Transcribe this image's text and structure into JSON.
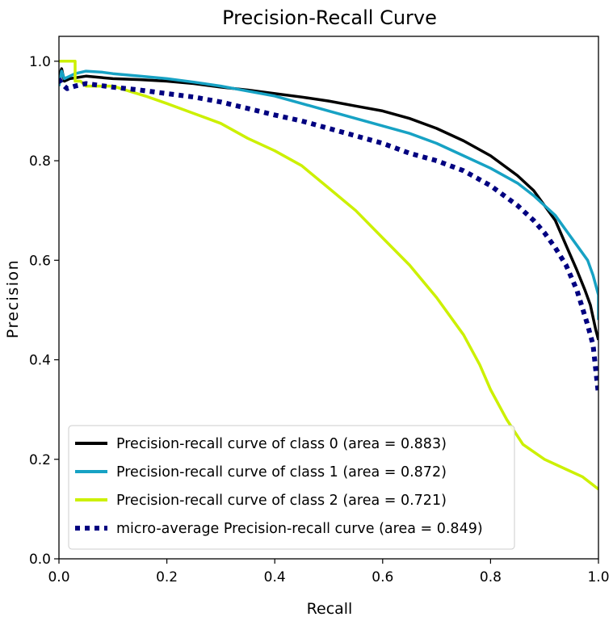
{
  "chart_data": {
    "type": "line",
    "title": "Precision-Recall Curve",
    "xlabel": "Recall",
    "ylabel": "Precision",
    "xlim": [
      0.0,
      1.0
    ],
    "ylim": [
      0.0,
      1.05
    ],
    "xticks": [
      "0.0",
      "0.2",
      "0.4",
      "0.6",
      "0.8",
      "1.0"
    ],
    "xtick_values": [
      0.0,
      0.2,
      0.4,
      0.6,
      0.8,
      1.0
    ],
    "yticks": [
      "0.0",
      "0.2",
      "0.4",
      "0.6",
      "0.8",
      "1.0"
    ],
    "ytick_values": [
      0.0,
      0.2,
      0.4,
      0.6,
      0.8,
      1.0
    ],
    "grid": false,
    "legend_position": "lower-left",
    "series": [
      {
        "name": "Precision-recall curve of class 0 (area = 0.883)",
        "color": "#000000",
        "style": "solid",
        "points": [
          [
            0.0,
            0.97
          ],
          [
            0.005,
            0.985
          ],
          [
            0.01,
            0.96
          ],
          [
            0.02,
            0.965
          ],
          [
            0.05,
            0.97
          ],
          [
            0.1,
            0.965
          ],
          [
            0.15,
            0.963
          ],
          [
            0.2,
            0.96
          ],
          [
            0.25,
            0.955
          ],
          [
            0.3,
            0.948
          ],
          [
            0.35,
            0.942
          ],
          [
            0.4,
            0.935
          ],
          [
            0.45,
            0.928
          ],
          [
            0.5,
            0.92
          ],
          [
            0.55,
            0.91
          ],
          [
            0.6,
            0.9
          ],
          [
            0.65,
            0.885
          ],
          [
            0.7,
            0.865
          ],
          [
            0.75,
            0.84
          ],
          [
            0.8,
            0.81
          ],
          [
            0.85,
            0.77
          ],
          [
            0.88,
            0.74
          ],
          [
            0.9,
            0.71
          ],
          [
            0.92,
            0.68
          ],
          [
            0.94,
            0.63
          ],
          [
            0.96,
            0.58
          ],
          [
            0.975,
            0.54
          ],
          [
            0.985,
            0.51
          ],
          [
            0.995,
            0.46
          ],
          [
            1.0,
            0.44
          ]
        ]
      },
      {
        "name": "Precision-recall curve of class 1 (area = 0.872)",
        "color": "#17a2c4",
        "style": "solid",
        "points": [
          [
            0.0,
            0.95
          ],
          [
            0.005,
            0.98
          ],
          [
            0.01,
            0.965
          ],
          [
            0.03,
            0.975
          ],
          [
            0.05,
            0.98
          ],
          [
            0.08,
            0.978
          ],
          [
            0.1,
            0.975
          ],
          [
            0.15,
            0.97
          ],
          [
            0.2,
            0.965
          ],
          [
            0.25,
            0.958
          ],
          [
            0.3,
            0.95
          ],
          [
            0.35,
            0.94
          ],
          [
            0.4,
            0.93
          ],
          [
            0.45,
            0.915
          ],
          [
            0.5,
            0.9
          ],
          [
            0.55,
            0.885
          ],
          [
            0.6,
            0.87
          ],
          [
            0.65,
            0.855
          ],
          [
            0.7,
            0.835
          ],
          [
            0.75,
            0.81
          ],
          [
            0.8,
            0.785
          ],
          [
            0.85,
            0.755
          ],
          [
            0.88,
            0.73
          ],
          [
            0.9,
            0.71
          ],
          [
            0.92,
            0.69
          ],
          [
            0.94,
            0.66
          ],
          [
            0.96,
            0.63
          ],
          [
            0.98,
            0.6
          ],
          [
            0.99,
            0.57
          ],
          [
            1.0,
            0.53
          ],
          [
            1.0,
            0.48
          ]
        ]
      },
      {
        "name": "Precision-recall curve of class 2 (area = 0.721)",
        "color": "#ccf000",
        "style": "solid",
        "points": [
          [
            0.0,
            1.0
          ],
          [
            0.03,
            1.0
          ],
          [
            0.03,
            0.96
          ],
          [
            0.04,
            0.96
          ],
          [
            0.05,
            0.95
          ],
          [
            0.08,
            0.95
          ],
          [
            0.1,
            0.95
          ],
          [
            0.13,
            0.94
          ],
          [
            0.16,
            0.93
          ],
          [
            0.2,
            0.915
          ],
          [
            0.25,
            0.895
          ],
          [
            0.3,
            0.875
          ],
          [
            0.35,
            0.845
          ],
          [
            0.4,
            0.82
          ],
          [
            0.45,
            0.79
          ],
          [
            0.5,
            0.745
          ],
          [
            0.55,
            0.7
          ],
          [
            0.6,
            0.645
          ],
          [
            0.65,
            0.59
          ],
          [
            0.7,
            0.525
          ],
          [
            0.75,
            0.45
          ],
          [
            0.78,
            0.39
          ],
          [
            0.8,
            0.34
          ],
          [
            0.83,
            0.28
          ],
          [
            0.86,
            0.23
          ],
          [
            0.9,
            0.2
          ],
          [
            0.94,
            0.18
          ],
          [
            0.97,
            0.165
          ],
          [
            1.0,
            0.14
          ]
        ]
      },
      {
        "name": "micro-average Precision-recall curve (area = 0.849)",
        "color": "#000080",
        "style": "dotted",
        "points": [
          [
            0.0,
            0.965
          ],
          [
            0.005,
            0.955
          ],
          [
            0.015,
            0.945
          ],
          [
            0.03,
            0.95
          ],
          [
            0.05,
            0.955
          ],
          [
            0.1,
            0.948
          ],
          [
            0.15,
            0.942
          ],
          [
            0.2,
            0.935
          ],
          [
            0.25,
            0.928
          ],
          [
            0.3,
            0.918
          ],
          [
            0.35,
            0.905
          ],
          [
            0.4,
            0.892
          ],
          [
            0.45,
            0.88
          ],
          [
            0.5,
            0.865
          ],
          [
            0.55,
            0.85
          ],
          [
            0.6,
            0.835
          ],
          [
            0.65,
            0.815
          ],
          [
            0.7,
            0.8
          ],
          [
            0.75,
            0.78
          ],
          [
            0.8,
            0.75
          ],
          [
            0.85,
            0.71
          ],
          [
            0.88,
            0.68
          ],
          [
            0.9,
            0.655
          ],
          [
            0.92,
            0.625
          ],
          [
            0.94,
            0.59
          ],
          [
            0.96,
            0.54
          ],
          [
            0.98,
            0.47
          ],
          [
            0.99,
            0.43
          ],
          [
            1.0,
            0.33
          ]
        ]
      }
    ]
  }
}
